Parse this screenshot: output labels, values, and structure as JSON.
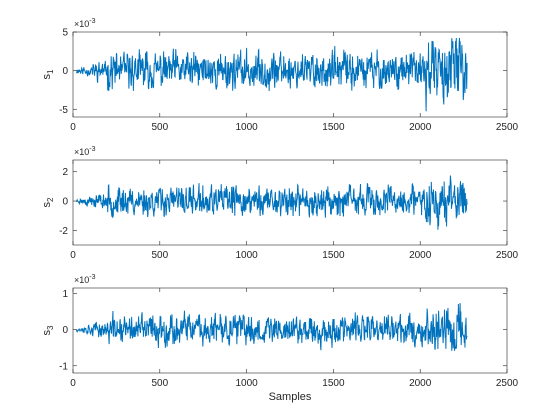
{
  "chart_data": [
    {
      "type": "line",
      "ylabel": "s",
      "ylabel_sub": "1",
      "exponent_base": "×10",
      "exponent_power": "-3",
      "xlim": [
        0,
        2500
      ],
      "ylim": [
        -6,
        5
      ],
      "xticks": [
        0,
        500,
        1000,
        1500,
        2000,
        2500
      ],
      "yticks": [
        -5,
        0,
        5
      ],
      "color": "#0072BD",
      "series": [
        {
          "amplitude": 2.6,
          "start": 20,
          "end": 2270,
          "seed": 11
        }
      ]
    },
    {
      "type": "line",
      "ylabel": "s",
      "ylabel_sub": "2",
      "exponent_base": "×10",
      "exponent_power": "-3",
      "xlim": [
        0,
        2500
      ],
      "ylim": [
        -3,
        2.8
      ],
      "xticks": [
        0,
        500,
        1000,
        1500,
        2000,
        2500
      ],
      "yticks": [
        -2,
        0,
        2
      ],
      "color": "#0072BD",
      "series": [
        {
          "amplitude": 1.1,
          "start": 20,
          "end": 2270,
          "seed": 23
        }
      ]
    },
    {
      "type": "line",
      "xlabel": "Samples",
      "ylabel": "s",
      "ylabel_sub": "3",
      "exponent_base": "×10",
      "exponent_power": "-3",
      "xlim": [
        0,
        2500
      ],
      "ylim": [
        -1.2,
        1.15
      ],
      "xticks": [
        0,
        500,
        1000,
        1500,
        2000,
        2500
      ],
      "yticks": [
        -1,
        0,
        1
      ],
      "color": "#0072BD",
      "series": [
        {
          "amplitude": 0.45,
          "start": 20,
          "end": 2270,
          "seed": 37
        }
      ]
    }
  ]
}
